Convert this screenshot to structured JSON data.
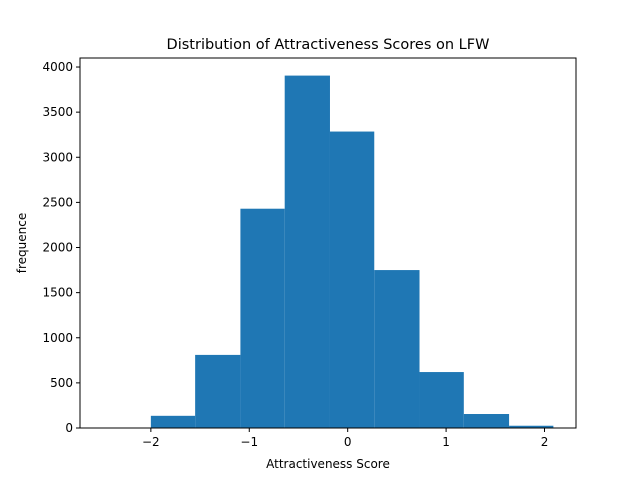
{
  "chart_data": {
    "type": "bar",
    "title": "Distribution of Attractiveness Scores on LFW",
    "xlabel": "Attractiveness Score",
    "ylabel": "frequence",
    "xlim": [
      -2.72,
      2.32
    ],
    "ylim": [
      0,
      4100
    ],
    "xticks": [
      -2,
      -1,
      0,
      1,
      2
    ],
    "yticks": [
      0,
      500,
      1000,
      1500,
      2000,
      2500,
      3000,
      3500,
      4000
    ],
    "bin_edges": [
      -2.46,
      -2.0,
      -1.55,
      -1.09,
      -0.64,
      -0.18,
      0.27,
      0.73,
      1.18,
      1.64,
      2.09
    ],
    "values": [
      5,
      135,
      810,
      2430,
      3905,
      3285,
      1750,
      620,
      155,
      25
    ],
    "grid": false,
    "bar_color": "#1f77b4"
  }
}
